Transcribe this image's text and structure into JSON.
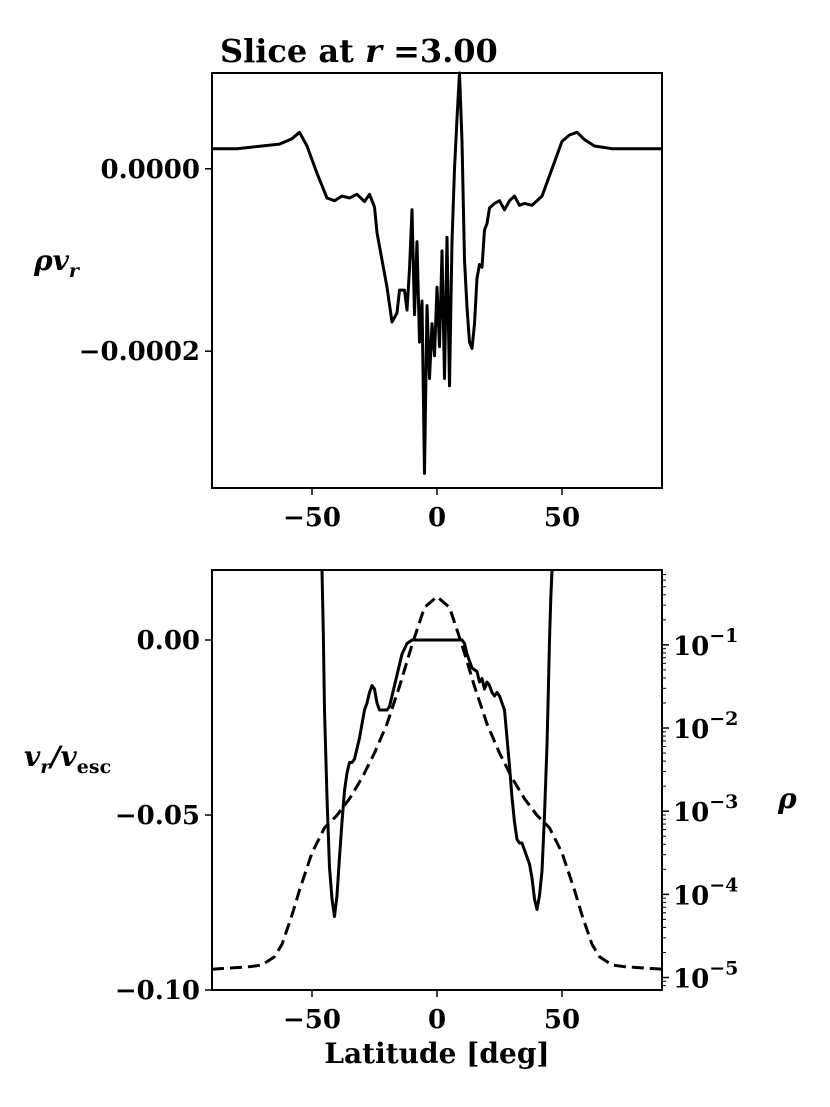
{
  "chart_data": [
    {
      "type": "line",
      "title": "Slice at r =3.00",
      "title_parts": {
        "text": "Slice at ",
        "var": "r",
        "value": " =3.00"
      },
      "xlabel": "",
      "ylabel": "ρv_r",
      "ylabel_parts": {
        "main": "ρv",
        "sub": "r"
      },
      "xlim": [
        -90,
        90
      ],
      "ylim": [
        -0.00035,
        0.000105
      ],
      "xticks": [
        -50,
        0,
        50
      ],
      "xtick_labels": [
        "−50",
        "0",
        "50"
      ],
      "yticks": [
        0.0,
        -0.0002
      ],
      "ytick_labels": [
        "0.0000",
        "−0.0002"
      ],
      "grid": false,
      "series": [
        {
          "style": "solid",
          "x": [
            -90,
            -80,
            -70,
            -63,
            -58,
            -55,
            -52,
            -48,
            -44,
            -41,
            -38,
            -35,
            -32,
            -29,
            -27,
            -25,
            -24,
            -22,
            -20,
            -18,
            -16,
            -15,
            -13,
            -12,
            -11,
            -10,
            -9,
            -8,
            -7,
            -6,
            -5,
            -4,
            -3,
            -2,
            -1,
            0,
            1,
            2,
            3,
            4,
            5,
            6,
            7,
            8,
            9,
            10,
            11,
            12,
            13,
            14,
            15,
            16,
            17,
            18,
            19,
            20,
            21,
            23,
            25,
            27,
            29,
            31,
            33,
            35,
            38,
            42,
            46,
            50,
            53,
            56,
            59,
            63,
            70,
            80,
            90
          ],
          "y": [
            2.2e-05,
            2.2e-05,
            2.5e-05,
            2.7e-05,
            3.3e-05,
            4e-05,
            2.5e-05,
            -5e-06,
            -3.2e-05,
            -3.5e-05,
            -3e-05,
            -3.2e-05,
            -2.8e-05,
            -3.6e-05,
            -2.8e-05,
            -4.2e-05,
            -7e-05,
            -0.0001,
            -0.00013,
            -0.000168,
            -0.000158,
            -0.000133,
            -0.000133,
            -0.000155,
            -0.00011,
            -4.5e-05,
            -0.00016,
            -8e-05,
            -0.00019,
            -0.000145,
            -0.000334,
            -0.00015,
            -0.00023,
            -0.00017,
            -0.000205,
            -0.00013,
            -0.000195,
            -9e-05,
            -0.00023,
            -7.5e-05,
            -0.000238,
            -8e-05,
            0.0,
            5.5e-05,
            0.000105,
            3e-05,
            -0.0001,
            -0.000152,
            -0.00019,
            -0.000197,
            -0.00017,
            -0.00012,
            -0.000105,
            -0.000108,
            -6.7e-05,
            -6e-05,
            -4.3e-05,
            -3.8e-05,
            -3.5e-05,
            -4.5e-05,
            -3.5e-05,
            -3e-05,
            -4e-05,
            -3.8e-05,
            -4e-05,
            -3e-05,
            0.0,
            3e-05,
            3.7e-05,
            4e-05,
            3.2e-05,
            2.5e-05,
            2.2e-05,
            2.2e-05,
            2.2e-05
          ]
        }
      ]
    },
    {
      "type": "line",
      "title": "",
      "xlabel": "Latitude [deg]",
      "ylabel": "v_r/v_esc",
      "ylabel_parts": {
        "main": "v",
        "sub": "r",
        "sep": "/v",
        "sub2": "esc"
      },
      "ylabel_right": "ρ",
      "xlim": [
        -90,
        90
      ],
      "ylim": [
        -0.1,
        0.02
      ],
      "y2lim_log10": [
        -5.15,
        -0.1
      ],
      "y2scale": "log",
      "xticks": [
        -50,
        0,
        50
      ],
      "xtick_labels": [
        "−50",
        "0",
        "50"
      ],
      "yticks": [
        0.0,
        -0.05,
        -0.1
      ],
      "ytick_labels": [
        "0.00",
        "−0.05",
        "−0.10"
      ],
      "y2ticks_log10": [
        -1,
        -2,
        -3,
        -4,
        -5
      ],
      "y2tick_base": "10",
      "y2tick_exponents": [
        "−1",
        "−2",
        "−3",
        "−4",
        "−5"
      ],
      "grid": false,
      "series": [
        {
          "style": "solid",
          "axis": "left",
          "x": [
            -46,
            -45.5,
            -45,
            -44,
            -43,
            -42,
            -41,
            -40,
            -39,
            -38,
            -37,
            -36,
            -35,
            -34,
            -33,
            -32,
            -31,
            -30,
            -29,
            -28,
            -27,
            -26,
            -25,
            -24,
            -23,
            -22,
            -21,
            -20,
            -19,
            -18,
            -16,
            -14,
            -12,
            -10,
            -8,
            -6,
            -4,
            -2,
            0,
            2,
            4,
            6,
            8,
            10,
            11,
            12,
            14,
            16,
            17,
            18,
            19,
            20,
            21,
            22,
            23,
            24,
            25,
            26,
            27,
            28,
            29,
            30,
            31,
            32,
            33,
            34,
            35,
            36,
            37,
            38,
            39,
            40,
            41,
            42,
            43,
            44,
            44.5,
            45,
            45.5,
            46
          ],
          "y": [
            0.02,
            0.002,
            -0.02,
            -0.045,
            -0.065,
            -0.074,
            -0.079,
            -0.073,
            -0.062,
            -0.052,
            -0.043,
            -0.038,
            -0.035,
            -0.035,
            -0.034,
            -0.031,
            -0.028,
            -0.024,
            -0.02,
            -0.018,
            -0.015,
            -0.013,
            -0.014,
            -0.018,
            -0.02,
            -0.02,
            -0.02,
            -0.02,
            -0.019,
            -0.016,
            -0.01,
            -0.004,
            -0.001,
            0.0,
            0.0,
            0.0,
            0.0,
            0.0,
            0.0,
            0.0,
            0.0,
            0.0,
            0.0,
            0.0,
            -0.001,
            -0.004,
            -0.008,
            -0.009,
            -0.012,
            -0.011,
            -0.014,
            -0.012,
            -0.013,
            -0.015,
            -0.016,
            -0.015,
            -0.016,
            -0.018,
            -0.02,
            -0.028,
            -0.036,
            -0.045,
            -0.052,
            -0.057,
            -0.058,
            -0.058,
            -0.06,
            -0.062,
            -0.064,
            -0.068,
            -0.074,
            -0.077,
            -0.073,
            -0.066,
            -0.05,
            -0.03,
            -0.015,
            0.0,
            0.012,
            0.02
          ]
        },
        {
          "style": "dashed",
          "axis": "right",
          "x": [
            -90,
            -75,
            -70,
            -65,
            -62,
            -58,
            -55,
            -50,
            -45,
            -40,
            -35,
            -30,
            -25,
            -20,
            -15,
            -10,
            -5,
            0,
            5,
            10,
            15,
            20,
            25,
            30,
            35,
            40,
            45,
            50,
            55,
            58,
            62,
            65,
            70,
            75,
            90
          ],
          "log10_y": [
            -4.9,
            -4.87,
            -4.85,
            -4.75,
            -4.6,
            -4.25,
            -3.95,
            -3.5,
            -3.2,
            -3.05,
            -2.85,
            -2.6,
            -2.3,
            -1.95,
            -1.5,
            -1.0,
            -0.55,
            -0.42,
            -0.55,
            -1.0,
            -1.5,
            -1.95,
            -2.3,
            -2.6,
            -2.85,
            -3.05,
            -3.2,
            -3.5,
            -3.95,
            -4.25,
            -4.6,
            -4.75,
            -4.85,
            -4.87,
            -4.9
          ]
        }
      ]
    }
  ]
}
